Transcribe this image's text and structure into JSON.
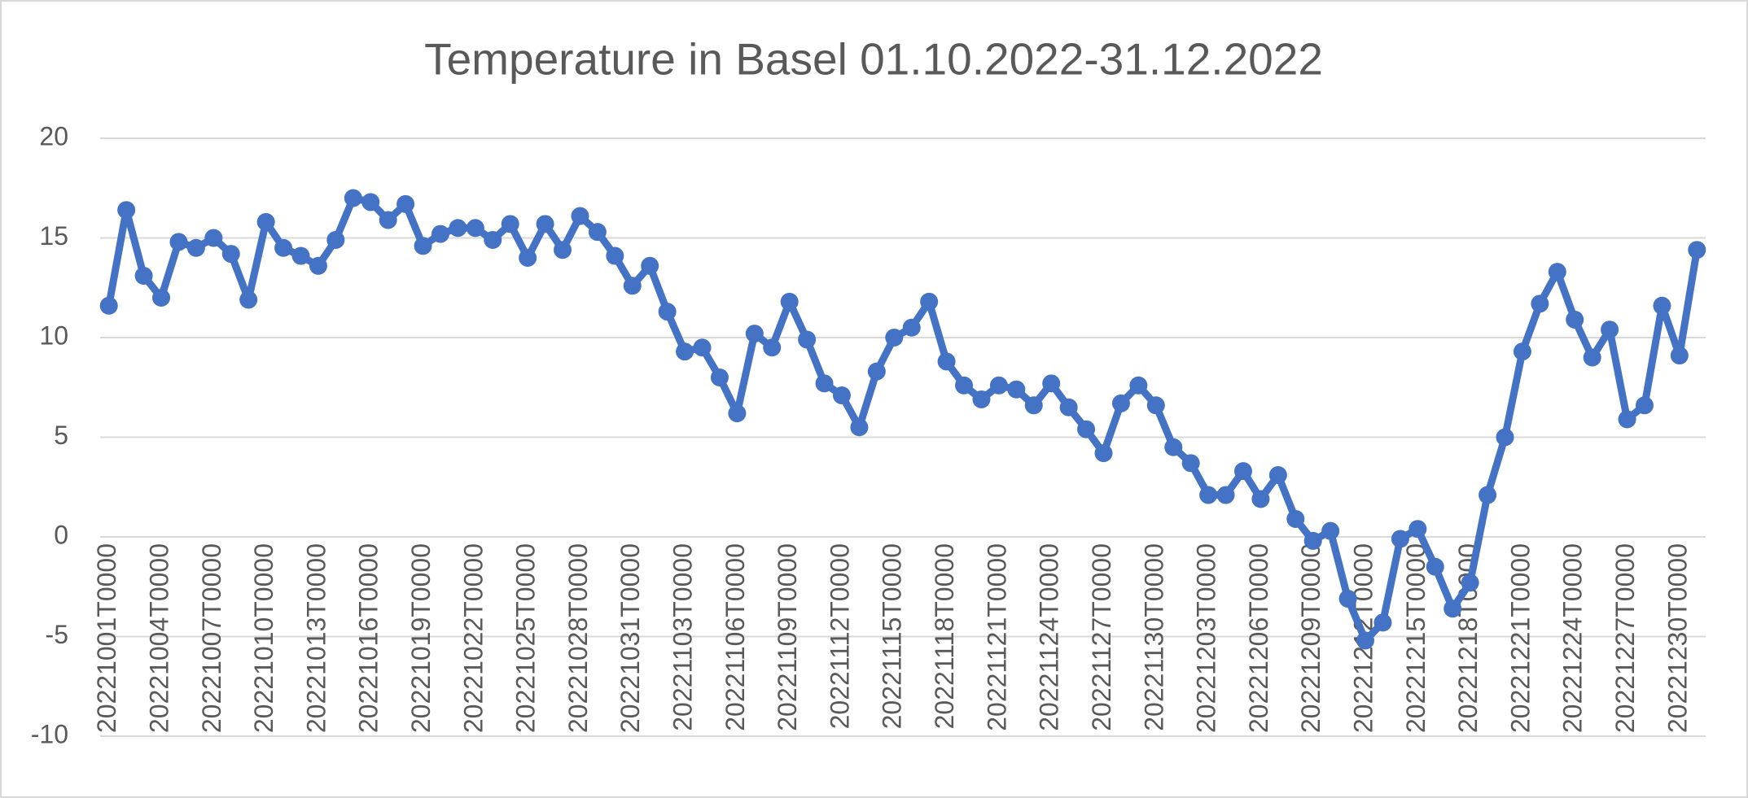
{
  "chart_data": {
    "type": "line",
    "title": "Temperature in Basel 01.10.2022-31.12.2022",
    "categories": [
      "20221001T0000",
      null,
      null,
      "20221004T0000",
      null,
      null,
      "20221007T0000",
      null,
      null,
      "20221010T0000",
      null,
      null,
      "20221013T0000",
      null,
      null,
      "20221016T0000",
      null,
      null,
      "20221019T0000",
      null,
      null,
      "20221022T0000",
      null,
      null,
      "20221025T0000",
      null,
      null,
      "20221028T0000",
      null,
      null,
      "20221031T0000",
      null,
      null,
      "20221103T0000",
      null,
      null,
      "20221106T0000",
      null,
      null,
      "20221109T0000",
      null,
      null,
      "20221112T0000",
      null,
      null,
      "20221115T0000",
      null,
      null,
      "20221118T0000",
      null,
      null,
      "20221121T0000",
      null,
      null,
      "20221124T0000",
      null,
      null,
      "20221127T0000",
      null,
      null,
      "20221130T0000",
      null,
      null,
      "20221203T0000",
      null,
      null,
      "20221206T0000",
      null,
      null,
      "20221209T0000",
      null,
      null,
      "20221212T0000",
      null,
      null,
      "20221215T0000",
      null,
      null,
      "20221218T0000",
      null,
      null,
      "20221221T0000",
      null,
      null,
      "20221224T0000",
      null,
      null,
      "20221227T0000",
      null,
      null,
      "20221230T0000",
      null
    ],
    "values": [
      11.6,
      16.4,
      13.1,
      12.0,
      14.8,
      14.5,
      15.0,
      14.2,
      11.9,
      15.8,
      14.5,
      14.1,
      13.6,
      14.9,
      17.0,
      16.8,
      15.9,
      16.7,
      14.6,
      15.2,
      15.5,
      15.5,
      14.9,
      15.7,
      14.0,
      15.7,
      14.4,
      16.1,
      15.3,
      14.1,
      12.6,
      13.6,
      11.3,
      9.3,
      9.5,
      8.0,
      6.2,
      10.2,
      9.5,
      11.8,
      9.9,
      7.7,
      7.1,
      5.5,
      8.3,
      10.0,
      10.5,
      11.8,
      8.8,
      7.6,
      6.9,
      7.6,
      7.4,
      6.6,
      7.7,
      6.5,
      5.4,
      4.2,
      6.7,
      7.6,
      6.6,
      4.5,
      3.7,
      2.1,
      2.1,
      3.3,
      1.9,
      3.1,
      0.9,
      -0.2,
      0.3,
      -3.1,
      -5.2,
      -4.3,
      -0.1,
      0.4,
      -1.5,
      -3.6,
      -2.3,
      2.1,
      5.0,
      9.3,
      11.7,
      13.3,
      10.9,
      9.0,
      10.4,
      5.9,
      6.6,
      11.6,
      9.1,
      14.4
    ],
    "color": "#4472c4",
    "ylim": [
      -10,
      20
    ],
    "yticks": [
      -10,
      -5,
      0,
      5,
      10,
      15,
      20
    ],
    "grid": true
  }
}
